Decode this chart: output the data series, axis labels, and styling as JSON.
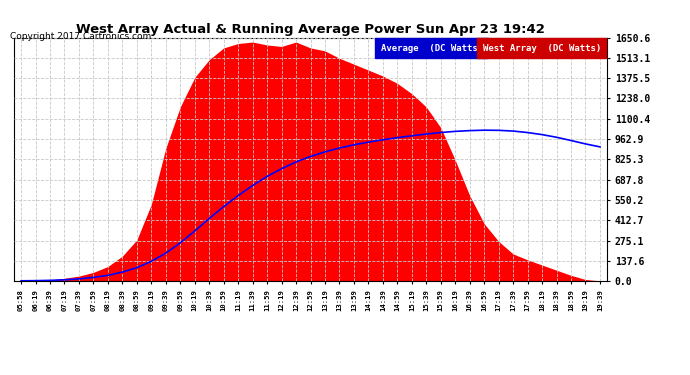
{
  "title": "West Array Actual & Running Average Power Sun Apr 23 19:42",
  "copyright": "Copyright 2017 Cartronics.com",
  "legend_avg": "Average  (DC Watts)",
  "legend_west": "West Array  (DC Watts)",
  "yticks": [
    0.0,
    137.6,
    275.1,
    412.7,
    550.2,
    687.8,
    825.3,
    962.9,
    1100.4,
    1238.0,
    1375.5,
    1513.1,
    1650.6
  ],
  "ymax": 1650.6,
  "ymin": 0.0,
  "bg_color": "#ffffff",
  "grid_color": "#c8c8c8",
  "fill_color": "#ff0000",
  "avg_line_color": "#0000ff",
  "xtick_labels": [
    "05:58",
    "06:19",
    "06:39",
    "07:19",
    "07:39",
    "07:59",
    "08:19",
    "08:39",
    "08:59",
    "09:19",
    "09:39",
    "09:59",
    "10:19",
    "10:39",
    "10:59",
    "11:19",
    "11:39",
    "11:59",
    "12:19",
    "12:39",
    "12:59",
    "13:19",
    "13:39",
    "13:59",
    "14:19",
    "14:39",
    "14:59",
    "15:19",
    "15:39",
    "15:59",
    "16:19",
    "16:39",
    "16:59",
    "17:19",
    "17:39",
    "17:59",
    "18:19",
    "18:39",
    "18:59",
    "19:19",
    "19:39"
  ],
  "west_y": [
    3,
    5,
    8,
    20,
    35,
    60,
    100,
    170,
    280,
    520,
    900,
    1180,
    1380,
    1500,
    1580,
    1610,
    1620,
    1600,
    1590,
    1620,
    1580,
    1560,
    1510,
    1470,
    1430,
    1390,
    1340,
    1270,
    1180,
    1040,
    820,
    580,
    390,
    270,
    185,
    145,
    110,
    75,
    40,
    12,
    3
  ],
  "avg_y": [
    3,
    4,
    6,
    10,
    16,
    26,
    40,
    62,
    92,
    135,
    190,
    260,
    340,
    425,
    505,
    580,
    648,
    710,
    762,
    808,
    845,
    876,
    902,
    924,
    942,
    958,
    972,
    985,
    997,
    1007,
    1015,
    1020,
    1023,
    1022,
    1017,
    1007,
    993,
    975,
    953,
    930,
    910
  ]
}
